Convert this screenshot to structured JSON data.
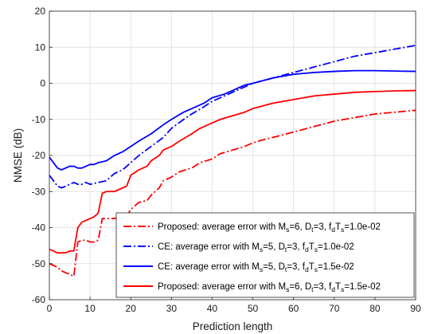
{
  "chart_data": {
    "type": "line",
    "xlabel": "Prediction length",
    "ylabel": "NMSE (dB)",
    "xlim": [
      0,
      90
    ],
    "ylim": [
      -60,
      20
    ],
    "xticks": [
      "0",
      "10",
      "20",
      "30",
      "40",
      "50",
      "60",
      "70",
      "80",
      "90"
    ],
    "yticks": [
      "-60",
      "-50",
      "-40",
      "-30",
      "-20",
      "-10",
      "0",
      "10",
      "20"
    ],
    "grid": true,
    "legend_position": "bottom-right",
    "series": [
      {
        "name": "Proposed: average error with M_s=6, D_t=3, f_d T_s=1.0e-02",
        "legend": {
          "pre": "Proposed: average error with M",
          "s1": "s",
          "mid1": "=6, D",
          "s2": "t",
          "mid2": "=3, f",
          "s3": "d",
          "mid3": "T",
          "s4": "s",
          "post": "=1.0e-02"
        },
        "color": "#ff0000",
        "style": "dashdot",
        "x": [
          0,
          1,
          2,
          3,
          4,
          5,
          6,
          7,
          8,
          9,
          10,
          11,
          12,
          13,
          14,
          15,
          16,
          17,
          18,
          19,
          20,
          22,
          24,
          25,
          27,
          28,
          30,
          32,
          35,
          37,
          40,
          42,
          45,
          48,
          50,
          53,
          55,
          60,
          65,
          70,
          75,
          80,
          85,
          90
        ],
        "y": [
          -50,
          -50.5,
          -51,
          -52,
          -52.5,
          -53,
          -53.5,
          -44,
          -43.5,
          -43.5,
          -44,
          -44,
          -43.5,
          -37.5,
          -37.5,
          -37.5,
          -37.5,
          -37,
          -37,
          -36.8,
          -35,
          -33,
          -32.5,
          -31,
          -29,
          -27,
          -26,
          -24.5,
          -23.5,
          -22,
          -21,
          -19.5,
          -18.5,
          -17.5,
          -16.5,
          -15.5,
          -15,
          -13.5,
          -12,
          -10.5,
          -9.5,
          -8.5,
          -8,
          -7.5
        ]
      },
      {
        "name": "CE: average error with M_s=5, D_t=3, f_d T_s=1.0e-02",
        "legend": {
          "pre": "CE: average error with M",
          "s1": "s",
          "mid1": "=5, D",
          "s2": "t",
          "mid2": "=3, f",
          "s3": "d",
          "mid3": "T",
          "s4": "s",
          "post": "=1.0e-02"
        },
        "color": "#0000ff",
        "style": "dashdot",
        "x": [
          0,
          1,
          2,
          3,
          4,
          5,
          6,
          7,
          8,
          9,
          10,
          12,
          14,
          16,
          18,
          20,
          22,
          25,
          28,
          30,
          33,
          35,
          38,
          40,
          43,
          45,
          48,
          50,
          55,
          60,
          65,
          70,
          75,
          80,
          85,
          90
        ],
        "y": [
          -25.5,
          -27,
          -28.5,
          -29,
          -28.5,
          -28,
          -27.5,
          -28,
          -28,
          -27.5,
          -28,
          -27.5,
          -27,
          -25,
          -24,
          -22,
          -20,
          -17.5,
          -15,
          -12.5,
          -10,
          -8.5,
          -6.5,
          -5,
          -3.5,
          -2.5,
          -1,
          0,
          1.5,
          3,
          4.5,
          6,
          7.5,
          8.5,
          9.5,
          10.5
        ]
      },
      {
        "name": "CE: average error with M_s=5, D_t=3, f_d T_s=1.5e-02",
        "legend": {
          "pre": "CE: average error with M",
          "s1": "s",
          "mid1": "=5, D",
          "s2": "t",
          "mid2": "=3, f",
          "s3": "d",
          "mid3": "T",
          "s4": "s",
          "post": "=1.5e-02"
        },
        "color": "#0000ff",
        "style": "solid",
        "x": [
          0,
          1,
          2,
          3,
          4,
          5,
          6,
          7,
          8,
          9,
          10,
          11,
          12,
          14,
          16,
          18,
          20,
          22,
          25,
          28,
          30,
          33,
          35,
          38,
          40,
          43,
          45,
          48,
          50,
          55,
          60,
          65,
          70,
          75,
          80,
          85,
          90
        ],
        "y": [
          -20.5,
          -22,
          -23.5,
          -24,
          -23.5,
          -23,
          -23,
          -23.5,
          -23.5,
          -23,
          -22.5,
          -22.5,
          -22,
          -21.5,
          -20,
          -19,
          -17.5,
          -16,
          -14,
          -11.5,
          -10,
          -8,
          -7,
          -5.5,
          -4,
          -3,
          -2,
          -0.5,
          0,
          1.5,
          2.5,
          3,
          3.3,
          3.5,
          3.5,
          3.4,
          3.3
        ]
      },
      {
        "name": "Proposed: average error with M_s=6, D_t=3, f_d T_s=1.5e-02",
        "legend": {
          "pre": "Proposed: average error with M",
          "s1": "s",
          "mid1": "=6, D",
          "s2": "t",
          "mid2": "=3, f",
          "s3": "d",
          "mid3": "T",
          "s4": "s",
          "post": "=1.5e-02"
        },
        "color": "#ff0000",
        "style": "solid",
        "x": [
          0,
          1,
          2,
          3,
          4,
          5,
          6,
          7,
          8,
          9,
          10,
          11,
          12,
          13,
          14,
          15,
          16,
          17,
          18,
          19,
          20,
          22,
          24,
          25,
          27,
          28,
          30,
          32,
          35,
          37,
          40,
          42,
          45,
          48,
          50,
          55,
          60,
          65,
          70,
          75,
          80,
          85,
          90
        ],
        "y": [
          -46,
          -46.5,
          -47,
          -47,
          -47,
          -46.5,
          -46.5,
          -40,
          -38.5,
          -38,
          -37.5,
          -37,
          -36,
          -30.5,
          -30,
          -30,
          -30,
          -29.5,
          -29,
          -28.5,
          -25.5,
          -24,
          -23,
          -21.5,
          -20,
          -18.5,
          -17.5,
          -16,
          -14,
          -12.5,
          -11,
          -10,
          -9,
          -8,
          -7,
          -5.5,
          -4.5,
          -3.5,
          -3,
          -2.5,
          -2.3,
          -2.1,
          -2
        ]
      }
    ]
  }
}
